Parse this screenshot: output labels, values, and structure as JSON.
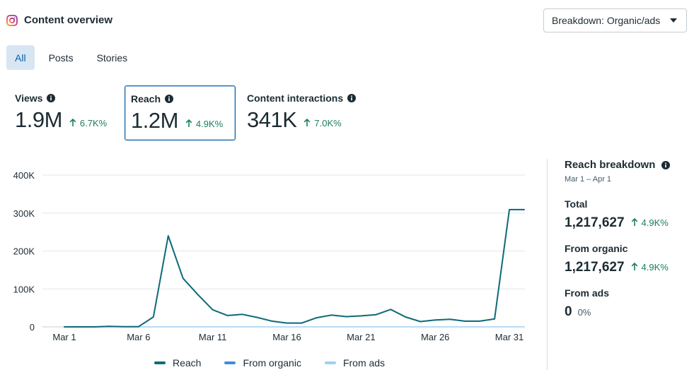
{
  "header": {
    "title": "Content overview",
    "icon": "instagram-icon"
  },
  "breakdown_button": {
    "label": "Breakdown: Organic/ads"
  },
  "tabs": [
    {
      "label": "All",
      "active": true
    },
    {
      "label": "Posts",
      "active": false
    },
    {
      "label": "Stories",
      "active": false
    }
  ],
  "metrics": [
    {
      "label": "Views",
      "value": "1.9M",
      "change": "6.7K%",
      "selected": false
    },
    {
      "label": "Reach",
      "value": "1.2M",
      "change": "4.9K%",
      "selected": true
    },
    {
      "label": "Content interactions",
      "value": "341K",
      "change": "7.0K%",
      "selected": false
    }
  ],
  "colors": {
    "reach": "#0f6b78",
    "from_organic": "#3d8fd6",
    "from_ads": "#9fd0f2",
    "positive": "#1a7f5a",
    "accent": "#0a5ea8"
  },
  "chart_data": {
    "type": "line",
    "y_ticks": [
      "400K",
      "300K",
      "200K",
      "100K",
      "0"
    ],
    "y_tick_values": [
      400000,
      300000,
      200000,
      100000,
      0
    ],
    "ylim": [
      0,
      400000
    ],
    "x_tick_labels": [
      "Mar 1",
      "Mar 6",
      "Mar 11",
      "Mar 16",
      "Mar 21",
      "Mar 26",
      "Mar 31"
    ],
    "x_tick_days": [
      1,
      6,
      11,
      16,
      21,
      26,
      31
    ],
    "x_days": [
      1,
      2,
      3,
      4,
      5,
      6,
      7,
      8,
      9,
      10,
      11,
      12,
      13,
      14,
      15,
      16,
      17,
      18,
      19,
      20,
      21,
      22,
      23,
      24,
      25,
      26,
      27,
      28,
      29,
      30,
      31,
      32
    ],
    "series": [
      {
        "name": "Reach",
        "values": [
          0,
          0,
          0,
          1500,
          500,
          500,
          26000,
          240000,
          128000,
          85000,
          45000,
          30000,
          33000,
          25000,
          15000,
          10000,
          10000,
          24000,
          31000,
          27000,
          29000,
          32000,
          46000,
          26000,
          14000,
          18000,
          20000,
          15000,
          15000,
          21000,
          309000,
          309000
        ]
      },
      {
        "name": "From organic",
        "values": [
          0,
          0,
          0,
          1500,
          500,
          500,
          26000,
          240000,
          128000,
          85000,
          45000,
          30000,
          33000,
          25000,
          15000,
          10000,
          10000,
          24000,
          31000,
          27000,
          29000,
          32000,
          46000,
          26000,
          14000,
          18000,
          20000,
          15000,
          15000,
          21000,
          309000,
          309000
        ]
      },
      {
        "name": "From ads",
        "values": [
          0,
          0,
          0,
          0,
          0,
          0,
          0,
          0,
          0,
          0,
          0,
          0,
          0,
          0,
          0,
          0,
          0,
          0,
          0,
          0,
          0,
          0,
          0,
          0,
          0,
          0,
          0,
          0,
          0,
          0,
          0,
          0
        ]
      }
    ],
    "legend": [
      "Reach",
      "From organic",
      "From ads"
    ]
  },
  "breakdown_panel": {
    "title": "Reach breakdown",
    "date_range": "Mar 1 – Apr 1",
    "total": {
      "label": "Total",
      "value": "1,217,627",
      "change": "4.9K%"
    },
    "organic": {
      "label": "From organic",
      "value": "1,217,627",
      "change": "4.9K%"
    },
    "ads": {
      "label": "From ads",
      "value": "0",
      "change": "0%"
    }
  }
}
